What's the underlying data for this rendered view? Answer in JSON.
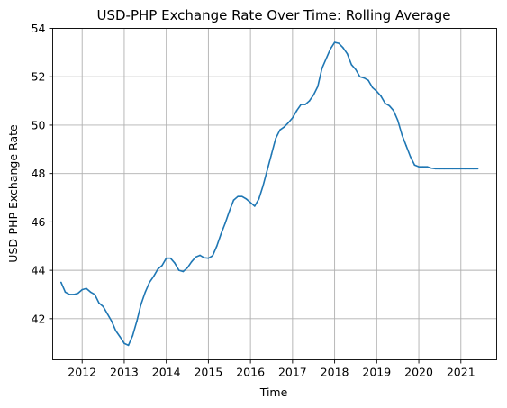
{
  "chart_data": {
    "type": "line",
    "title": "USD-PHP Exchange Rate Over Time: Rolling Average",
    "xlabel": "Time",
    "ylabel": "USD-PHP Exchange Rate",
    "grid": true,
    "xlim": [
      2011.3,
      2021.85
    ],
    "ylim": [
      40.3,
      54.0
    ],
    "xticks": [
      2012,
      2013,
      2014,
      2015,
      2016,
      2017,
      2018,
      2019,
      2020,
      2021
    ],
    "xtick_labels": [
      "2012",
      "2013",
      "2014",
      "2015",
      "2016",
      "2017",
      "2018",
      "2019",
      "2020",
      "2021"
    ],
    "yticks": [
      42,
      44,
      46,
      48,
      50,
      52,
      54
    ],
    "ytick_labels": [
      "42",
      "44",
      "46",
      "48",
      "50",
      "52",
      "54"
    ],
    "colors": {
      "line": "#1f77b4"
    },
    "series": [
      {
        "x": [
          2011.5,
          2011.6,
          2011.7,
          2011.8,
          2011.9,
          2012.0,
          2012.1,
          2012.2,
          2012.3,
          2012.4,
          2012.5,
          2012.6,
          2012.7,
          2012.8,
          2012.9,
          2013.0,
          2013.1,
          2013.2,
          2013.3,
          2013.4,
          2013.5,
          2013.6,
          2013.7,
          2013.8,
          2013.9,
          2014.0,
          2014.1,
          2014.2,
          2014.3,
          2014.4,
          2014.5,
          2014.6,
          2014.7,
          2014.8,
          2014.9,
          2015.0,
          2015.1,
          2015.2,
          2015.3,
          2015.4,
          2015.5,
          2015.6,
          2015.7,
          2015.8,
          2015.9,
          2016.0,
          2016.1,
          2016.2,
          2016.3,
          2016.4,
          2016.5,
          2016.6,
          2016.7,
          2016.8,
          2016.9,
          2017.0,
          2017.1,
          2017.2,
          2017.3,
          2017.4,
          2017.5,
          2017.6,
          2017.7,
          2017.8,
          2017.9,
          2018.0,
          2018.1,
          2018.2,
          2018.3,
          2018.4,
          2018.5,
          2018.6,
          2018.7,
          2018.8,
          2018.9,
          2019.0,
          2019.1,
          2019.2,
          2019.3,
          2019.4,
          2019.5,
          2019.6,
          2019.7,
          2019.8,
          2019.9,
          2020.0,
          2020.1,
          2020.2,
          2020.3,
          2020.4,
          2020.5,
          2020.6,
          2020.7,
          2020.8,
          2020.9,
          2021.0,
          2021.1,
          2021.2,
          2021.3,
          2021.4
        ],
        "values": [
          43.5,
          43.1,
          43.0,
          43.0,
          43.05,
          43.2,
          43.25,
          43.1,
          43.0,
          42.65,
          42.5,
          42.2,
          41.9,
          41.5,
          41.25,
          40.98,
          40.9,
          41.3,
          41.9,
          42.6,
          43.1,
          43.5,
          43.75,
          44.05,
          44.2,
          44.5,
          44.5,
          44.3,
          44.0,
          43.95,
          44.1,
          44.35,
          44.55,
          44.62,
          44.52,
          44.5,
          44.6,
          45.0,
          45.5,
          45.95,
          46.45,
          46.9,
          47.05,
          47.05,
          46.95,
          46.8,
          46.65,
          46.95,
          47.5,
          48.15,
          48.8,
          49.45,
          49.8,
          49.92,
          50.1,
          50.3,
          50.6,
          50.85,
          50.85,
          51.0,
          51.25,
          51.6,
          52.35,
          52.75,
          53.15,
          53.42,
          53.38,
          53.2,
          52.95,
          52.5,
          52.3,
          52.0,
          51.95,
          51.85,
          51.55,
          51.4,
          51.2,
          50.9,
          50.8,
          50.6,
          50.2,
          49.6,
          49.15,
          48.7,
          48.35,
          48.28,
          48.28,
          48.28,
          48.22,
          48.2,
          48.2,
          48.2,
          48.2,
          48.2,
          48.2,
          48.2,
          48.2,
          48.2,
          48.2,
          48.2
        ]
      }
    ]
  }
}
